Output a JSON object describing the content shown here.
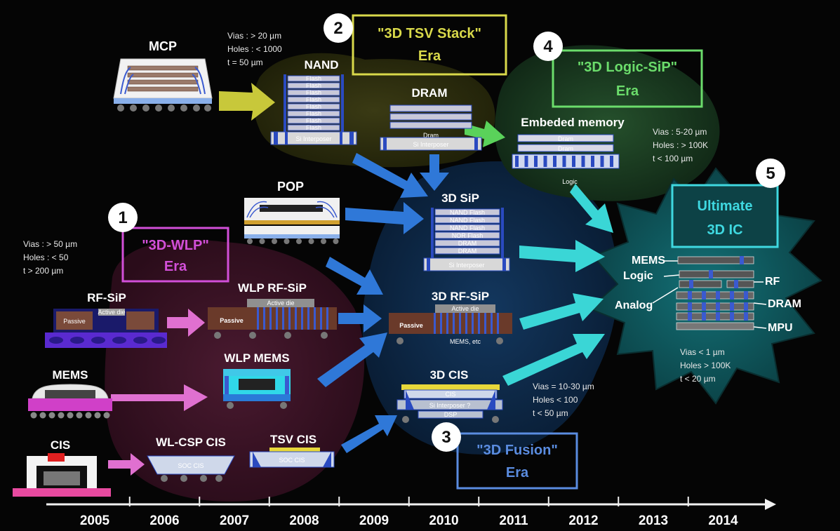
{
  "eras": [
    {
      "number": "1",
      "line1": "\"3D-WLP\"",
      "line2": "Era",
      "color": "#d24fd8"
    },
    {
      "number": "2",
      "line1": "\"3D TSV Stack\"",
      "line2": "Era",
      "color": "#d9d94a"
    },
    {
      "number": "3",
      "line1": "\"3D Fusion\"",
      "line2": "Era",
      "color": "#5a8ce0"
    },
    {
      "number": "4",
      "line1": "\"3D Logic-SiP\"",
      "line2": "Era",
      "color": "#6bdc6b"
    },
    {
      "number": "5",
      "line1": "Ultimate",
      "line2": "3D IC",
      "color": "#3fd8e0"
    }
  ],
  "specs": {
    "wlp": [
      "Vias : > 50 µm",
      "Holes : < 50",
      "t > 200 µm"
    ],
    "tsv": [
      "Vias : > 20 µm",
      "Holes : < 1000",
      "t = 50 µm"
    ],
    "fusion": [
      "Vias = 10-30 µm",
      "Holes < 100",
      "t < 50 µm"
    ],
    "logic": [
      "Vias : 5-20 µm",
      "Holes : > 100K",
      "t < 100 µm"
    ],
    "ultimate": [
      "Vias < 1 µm",
      "Holes > 100K",
      "t < 20 µm"
    ]
  },
  "packages": {
    "mcp": "MCP",
    "nand": "NAND",
    "dram": "DRAM",
    "pop": "POP",
    "embedded_memory": "Embeded memory",
    "sip3d": "3D SiP",
    "rf_sip": "RF-SiP",
    "wlp_rf_sip": "WLP RF-SiP",
    "rf_sip3d": "3D RF-SiP",
    "mems": "MEMS",
    "wlp_mems": "WLP MEMS",
    "cis": "CIS",
    "wlcsp_cis": "WL-CSP CIS",
    "tsv_cis": "TSV CIS",
    "cis3d": "3D CIS"
  },
  "chip_labels": {
    "flash": "Flash",
    "si_interposer": "Si Interposer",
    "dram_die": "Dram",
    "logic": "Logic",
    "nand_flash": "NAND Flash",
    "nor_flash": "NOR Flash",
    "dram_upper": "DRAM",
    "passive": "Passive",
    "active_die": "Active die",
    "mems_etc": "MEMS, etc",
    "soc_cis": "SOC CIS",
    "cis_die": "CIS",
    "si_interposer_q": "Si Interposer ?",
    "dsp": "DSP"
  },
  "ultimate_layers": {
    "mems": "MEMS",
    "logic": "Logic",
    "analog": "Analog",
    "rf": "RF",
    "dram": "DRAM",
    "mpu": "MPU"
  },
  "timeline": {
    "years": [
      "2005",
      "2006",
      "2007",
      "2008",
      "2009",
      "2010",
      "2011",
      "2012",
      "2013",
      "2014"
    ]
  },
  "colors": {
    "region_wlp": "#3a1426",
    "region_tsv": "#2f3010",
    "region_fusion": "#0e2a4a",
    "region_logic": "#1c3a22",
    "region_ultimate": "#0f5a5e",
    "arrow_yellow": "#c8c83a",
    "arrow_pink": "#e070d0",
    "arrow_blue": "#2f78d8",
    "arrow_cyan": "#3ad6d6",
    "arrow_green": "#5ad25a"
  }
}
